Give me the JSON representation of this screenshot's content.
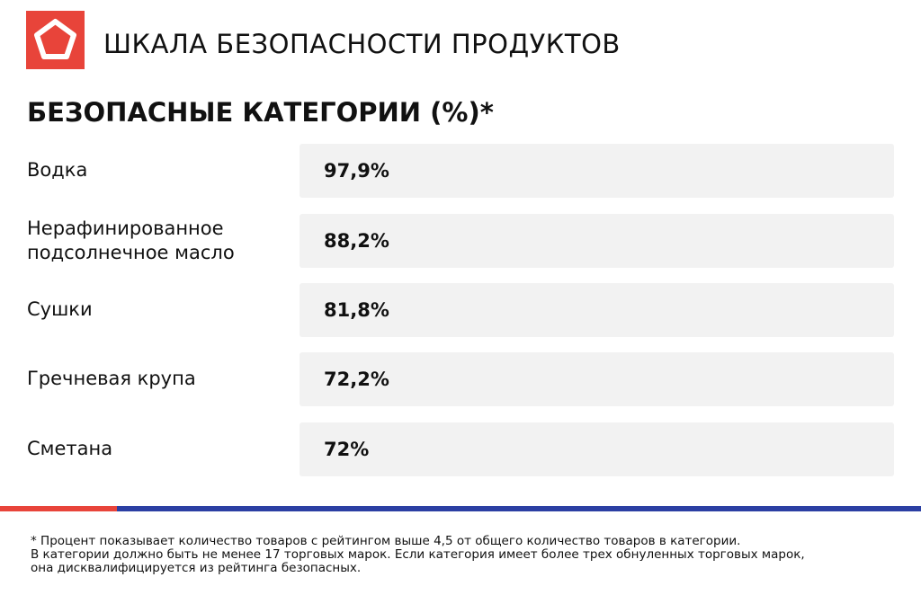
{
  "header": {
    "title": "ШКАЛА БЕЗОПАСНОСТИ ПРОДУКТОВ"
  },
  "subtitle": "БЕЗОПАСНЫЕ КАТЕГОРИИ (%)*",
  "table": {
    "rows": [
      [
        "Водка",
        "97,9%"
      ],
      [
        "Нерафинированное подсолнечное масло",
        "88,2%"
      ],
      [
        "Сушки",
        "81,8%"
      ],
      [
        "Гречневая крупа",
        "72,2%"
      ],
      [
        "Сметана",
        "72%"
      ]
    ]
  },
  "footnote": {
    "lines": [
      "* Процент показывает количество товаров с рейтингом выше 4,5 от общего количество товаров в категории.",
      "В категории должно быть не менее 17 торговых марок. Если категория имеет более трех обнуленных торговых марок,",
      "она дисквалифицируется из рейтинга безопасных."
    ]
  }
}
